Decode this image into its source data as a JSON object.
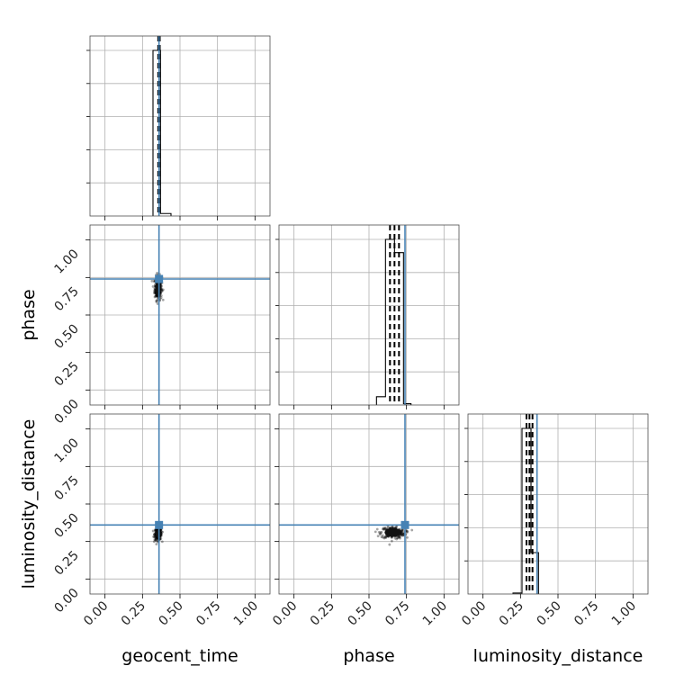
{
  "chart_data": {
    "type": "corner",
    "parameters": [
      "geocent_time",
      "phase",
      "luminosity_distance"
    ],
    "axis_range": [
      -0.1,
      1.1
    ],
    "ticks": [
      0.0,
      0.25,
      0.5,
      0.75,
      1.0
    ],
    "tick_labels": [
      "0.00",
      "0.25",
      "0.50",
      "0.75",
      "1.00"
    ],
    "grid": true,
    "colors": {
      "truth": "#4682b4",
      "histogram": "#000000",
      "density": "#000000"
    },
    "truths": {
      "geocent_time": 0.36,
      "phase": 0.74,
      "luminosity_distance": 0.36
    },
    "diagonal": [
      {
        "parameter": "geocent_time",
        "bins": [
          [
            0.32,
            0.37,
            1.0
          ],
          [
            0.37,
            0.44,
            0.015
          ]
        ],
        "quantile_lines": [
          0.355,
          0.36,
          0.365
        ]
      },
      {
        "parameter": "phase",
        "bins": [
          [
            0.55,
            0.61,
            0.05
          ],
          [
            0.61,
            0.67,
            1.0
          ],
          [
            0.67,
            0.73,
            0.92
          ],
          [
            0.73,
            0.78,
            0.008
          ]
        ],
        "quantile_lines": [
          0.64,
          0.67,
          0.7
        ]
      },
      {
        "parameter": "luminosity_distance",
        "bins": [
          [
            0.2,
            0.26,
            0.006
          ],
          [
            0.26,
            0.32,
            1.0
          ],
          [
            0.32,
            0.37,
            0.25
          ]
        ],
        "quantile_lines": [
          0.29,
          0.31,
          0.33
        ]
      }
    ],
    "off_diagonal": [
      {
        "x": "geocent_time",
        "y": "phase",
        "center": [
          0.355,
          0.68
        ],
        "spread": [
          0.012,
          0.04
        ]
      },
      {
        "x": "geocent_time",
        "y": "luminosity_distance",
        "center": [
          0.355,
          0.3
        ],
        "spread": [
          0.012,
          0.02
        ]
      },
      {
        "x": "phase",
        "y": "luminosity_distance",
        "center": [
          0.66,
          0.31
        ],
        "spread": [
          0.04,
          0.02
        ]
      }
    ]
  }
}
